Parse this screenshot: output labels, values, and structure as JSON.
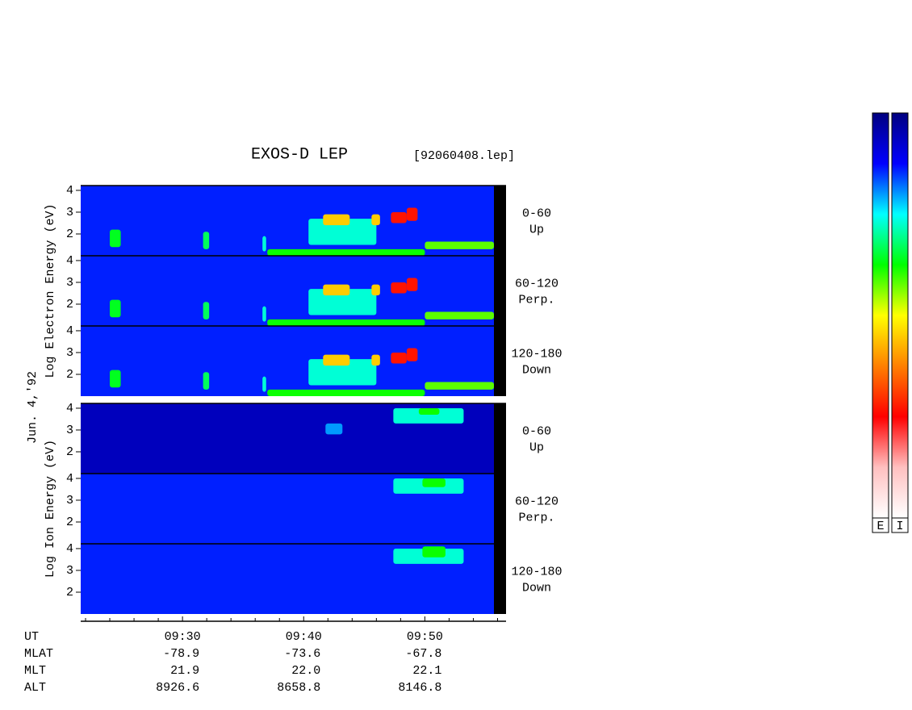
{
  "chart_data": {
    "type": "spectrogram",
    "title": "EXOS-D LEP",
    "file": "[92060408.lep]",
    "date_label": "Jun. 4,'92",
    "groups": [
      {
        "ylabel": "Log Electron Energy (eV)"
      },
      {
        "ylabel": "Log Ion Energy (eV)"
      }
    ],
    "colorscale": [
      "#000080",
      "#0000ff",
      "#00ffff",
      "#00ff00",
      "#ffff00",
      "#ff8000",
      "#ff0000",
      "#ffc0c0",
      "#ffffff"
    ],
    "colorbar_labels": [
      "E",
      "I"
    ],
    "xlim": [
      21.6,
      56.7
    ],
    "xticks": [
      {
        "value": 30,
        "label": "09:30"
      },
      {
        "value": 40,
        "label": "09:40"
      },
      {
        "value": 50,
        "label": "09:50"
      }
    ],
    "xminorticks": [
      22,
      24,
      26,
      28,
      32,
      34,
      36,
      38,
      42,
      44,
      46,
      48,
      52,
      54,
      56
    ],
    "ylim": [
      1,
      4.22
    ],
    "yticks": [
      2,
      3,
      4
    ],
    "orbit": [
      {
        "label": "UT",
        "values": []
      },
      {
        "label": "MLAT",
        "values": [
          "-78.9",
          "-73.6",
          "-67.8"
        ]
      },
      {
        "label": "MLT",
        "values": [
          "21.9",
          "22.0",
          "22.1"
        ]
      },
      {
        "label": "ALT",
        "values": [
          "8926.6",
          "8658.8",
          "8146.8"
        ]
      }
    ],
    "panels": [
      {
        "group": 0,
        "angle": "0-60",
        "direction": "Up",
        "background": 0.14,
        "blobs": [
          [
            24.0,
            24.9,
            1.4,
            2.2,
            0.36
          ],
          [
            31.7,
            32.2,
            1.3,
            2.1,
            0.33
          ],
          [
            36.6,
            36.9,
            1.2,
            1.9,
            0.27
          ],
          [
            40.4,
            46.0,
            1.5,
            2.7,
            0.27
          ],
          [
            41.6,
            43.8,
            2.4,
            2.9,
            0.55
          ],
          [
            45.6,
            46.3,
            2.4,
            2.9,
            0.55
          ],
          [
            47.2,
            48.5,
            2.5,
            3.0,
            0.73
          ],
          [
            48.5,
            49.4,
            2.6,
            3.2,
            0.73
          ],
          [
            37.0,
            50.0,
            1.0,
            1.3,
            0.38
          ],
          [
            50.0,
            55.7,
            1.3,
            1.65,
            0.42
          ]
        ]
      },
      {
        "group": 0,
        "angle": "60-120",
        "direction": "Perp.",
        "background": 0.14,
        "blobs": [
          [
            24.0,
            24.9,
            1.4,
            2.2,
            0.36
          ],
          [
            31.7,
            32.2,
            1.3,
            2.1,
            0.33
          ],
          [
            36.6,
            36.9,
            1.2,
            1.9,
            0.27
          ],
          [
            40.4,
            46.0,
            1.5,
            2.7,
            0.27
          ],
          [
            41.6,
            43.8,
            2.4,
            2.9,
            0.55
          ],
          [
            45.6,
            46.3,
            2.4,
            2.9,
            0.55
          ],
          [
            47.2,
            48.5,
            2.5,
            3.0,
            0.73
          ],
          [
            48.5,
            49.4,
            2.6,
            3.2,
            0.73
          ],
          [
            37.0,
            50.0,
            1.0,
            1.3,
            0.38
          ],
          [
            50.0,
            55.7,
            1.3,
            1.65,
            0.42
          ]
        ]
      },
      {
        "group": 0,
        "angle": "120-180",
        "direction": "Down",
        "background": 0.14,
        "blobs": [
          [
            24.0,
            24.9,
            1.4,
            2.2,
            0.36
          ],
          [
            31.7,
            32.2,
            1.3,
            2.1,
            0.33
          ],
          [
            36.6,
            36.9,
            1.2,
            1.9,
            0.27
          ],
          [
            40.4,
            46.0,
            1.5,
            2.7,
            0.27
          ],
          [
            41.6,
            43.8,
            2.4,
            2.9,
            0.55
          ],
          [
            45.6,
            46.3,
            2.4,
            2.9,
            0.55
          ],
          [
            47.2,
            48.5,
            2.5,
            3.0,
            0.73
          ],
          [
            48.5,
            49.4,
            2.6,
            3.2,
            0.73
          ],
          [
            37.0,
            50.0,
            1.0,
            1.3,
            0.38
          ],
          [
            50.0,
            55.7,
            1.3,
            1.65,
            0.42
          ]
        ]
      },
      {
        "group": 1,
        "angle": "0-60",
        "direction": "Up",
        "background": 0.06,
        "blobs": [
          [
            47.4,
            53.2,
            3.3,
            4.0,
            0.27
          ],
          [
            49.5,
            51.2,
            3.7,
            4.0,
            0.38
          ],
          [
            41.8,
            43.2,
            2.8,
            3.3,
            0.2
          ]
        ]
      },
      {
        "group": 1,
        "angle": "60-120",
        "direction": "Perp.",
        "background": 0.14,
        "blobs": [
          [
            47.4,
            53.2,
            3.3,
            4.0,
            0.27
          ],
          [
            49.8,
            51.7,
            3.6,
            4.0,
            0.38
          ]
        ]
      },
      {
        "group": 1,
        "angle": "120-180",
        "direction": "Down",
        "background": 0.14,
        "blobs": [
          [
            47.4,
            53.2,
            3.3,
            4.0,
            0.27
          ],
          [
            49.8,
            51.7,
            3.6,
            4.1,
            0.38
          ]
        ]
      }
    ]
  }
}
